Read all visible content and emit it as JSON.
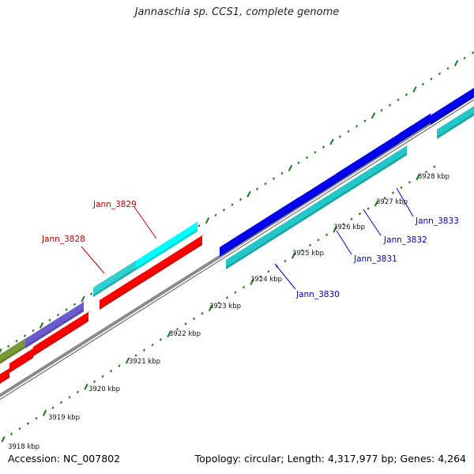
{
  "title": "Jannaschia sp. CCS1, complete genome",
  "footer": {
    "accession": "Accession: NC_007802",
    "summary": "Topology: circular; Length: 4,317,977 bp; Genes: 4,264"
  },
  "colors": {
    "backbone": "#8a8a8a",
    "tick": "#1a7a1a",
    "red_label": "#cc0000",
    "blue_label": "#0000cc",
    "red": "#ff0000",
    "cyan": "#22c7c7",
    "bright_cyan": "#00ffff",
    "blue": "#0000ee",
    "slate": "#6a5acd",
    "olive": "#6b8e23"
  },
  "ruler": {
    "labels": [
      "3918 kbp",
      "3919 kbp",
      "3920 kbp",
      "3921 kbp",
      "3922 kbp",
      "3923 kbp",
      "3924 kbp",
      "3925 kbp",
      "3926 kbp",
      "3927 kbp",
      "3928 kbp"
    ]
  },
  "gene_labels": [
    {
      "name": "Jann_3828",
      "color": "red"
    },
    {
      "name": "Jann_3829",
      "color": "red"
    },
    {
      "name": "Jann_3830",
      "color": "blue"
    },
    {
      "name": "Jann_3831",
      "color": "blue"
    },
    {
      "name": "Jann_3832",
      "color": "blue"
    },
    {
      "name": "Jann_3833",
      "color": "blue"
    }
  ]
}
